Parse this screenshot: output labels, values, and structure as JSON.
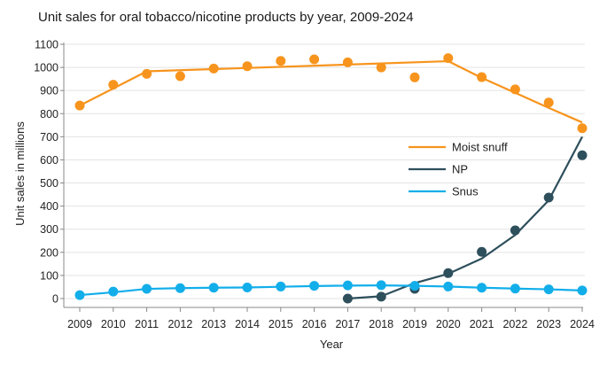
{
  "chart_data": {
    "type": "line",
    "title": "Unit sales for oral tobacco/nicotine products by year, 2009-2024",
    "xlabel": "Year",
    "ylabel": "Unit sales in millions",
    "ylim": [
      0,
      1100
    ],
    "yticks": [
      0,
      100,
      200,
      300,
      400,
      500,
      600,
      700,
      800,
      900,
      1000,
      1100
    ],
    "x": [
      2009,
      2010,
      2011,
      2012,
      2013,
      2014,
      2015,
      2016,
      2017,
      2018,
      2019,
      2020,
      2021,
      2022,
      2023,
      2024
    ],
    "grid": true,
    "legend_position": "center-right",
    "series": [
      {
        "name": "Moist snuff",
        "color": "#F7941D",
        "points": {
          "x": [
            2009,
            2010,
            2011,
            2012,
            2013,
            2014,
            2015,
            2016,
            2017,
            2018,
            2019,
            2020,
            2021,
            2022,
            2023,
            2024
          ],
          "y": [
            835,
            925,
            972,
            962,
            995,
            1005,
            1028,
            1035,
            1022,
            1000,
            957,
            1040,
            958,
            905,
            848,
            737
          ]
        },
        "trend": {
          "x": [
            2009,
            2011,
            2020,
            2021,
            2022,
            2023,
            2024
          ],
          "y": [
            835,
            983,
            1027,
            955,
            890,
            825,
            762
          ]
        }
      },
      {
        "name": "NP",
        "color": "#2E4F5C",
        "points": {
          "x": [
            2017,
            2018,
            2019,
            2020,
            2021,
            2022,
            2023,
            2024
          ],
          "y": [
            0,
            8,
            42,
            110,
            202,
            295,
            437,
            620
          ]
        },
        "trend": {
          "x": [
            2017,
            2018,
            2019,
            2020,
            2021,
            2022,
            2023,
            2024
          ],
          "y": [
            0,
            10,
            67,
            107,
            173,
            275,
            425,
            700
          ]
        }
      },
      {
        "name": "Snus",
        "color": "#12AEEA",
        "points": {
          "x": [
            2009,
            2010,
            2011,
            2012,
            2013,
            2014,
            2015,
            2016,
            2017,
            2018,
            2019,
            2020,
            2021,
            2022,
            2023,
            2024
          ],
          "y": [
            15,
            30,
            42,
            45,
            47,
            48,
            52,
            55,
            57,
            58,
            55,
            52,
            47,
            43,
            40,
            35
          ]
        },
        "trend": {
          "x": [
            2009,
            2010,
            2011,
            2012,
            2013,
            2014,
            2015,
            2016,
            2017,
            2018,
            2019,
            2020,
            2021,
            2022,
            2023,
            2024
          ],
          "y": [
            15,
            27,
            42,
            45,
            47,
            48,
            51,
            54,
            56,
            57,
            55,
            52,
            47,
            43,
            40,
            35
          ]
        }
      }
    ]
  }
}
